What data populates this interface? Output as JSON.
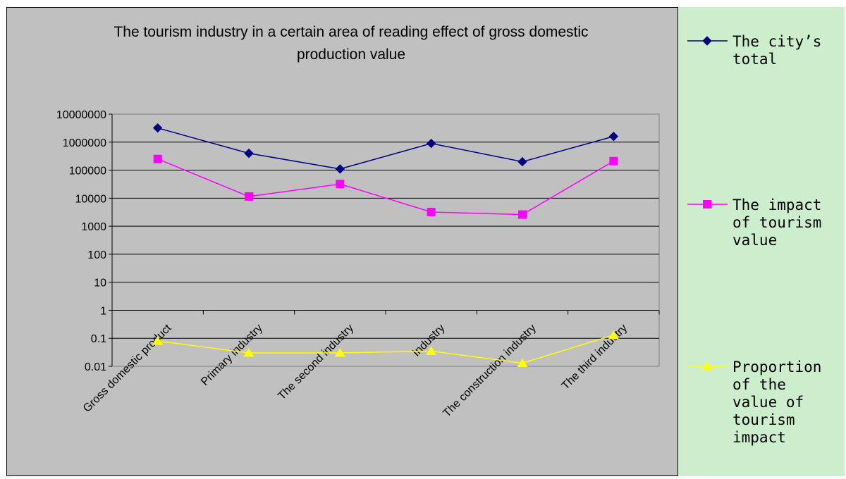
{
  "chart_data": {
    "type": "line",
    "title_lines": [
      "The tourism industry in a certain area of reading effect of gross domestic",
      "production value"
    ],
    "categories": [
      "Gross domestic product",
      "Primary industry",
      "The second industry",
      "Industry",
      "The construction industry",
      "The third industry"
    ],
    "y_scale": "log",
    "ylim": [
      0.01,
      10000000
    ],
    "y_ticks": [
      "10000000",
      "1000000",
      "100000",
      "10000",
      "1000",
      "100",
      "10",
      "1",
      "0.1",
      "0.01"
    ],
    "y_tick_values": [
      10000000,
      1000000,
      100000,
      10000,
      1000,
      100,
      10,
      1,
      0.1,
      0.01
    ],
    "grid": true,
    "legend_position": "right",
    "series": [
      {
        "name": "The city's total",
        "legend_lines": [
          "The city’s",
          "total"
        ],
        "values": [
          3200000,
          400000,
          110000,
          900000,
          200000,
          1600000
        ],
        "color": "#000080",
        "marker": "diamond"
      },
      {
        "name": "The impact of tourism value",
        "legend_lines": [
          "The impact",
          "of tourism",
          "value"
        ],
        "values": [
          250000,
          11500,
          32000,
          3200,
          2600,
          210000
        ],
        "color": "#ff00ff",
        "marker": "square"
      },
      {
        "name": "Proportion of the value of tourism impact",
        "legend_lines": [
          "Proportion",
          "of the",
          "value of",
          "tourism",
          "impact"
        ],
        "values": [
          0.08,
          0.03,
          0.03,
          0.035,
          0.013,
          0.13
        ],
        "color": "#ffff00",
        "marker": "triangle"
      }
    ]
  }
}
